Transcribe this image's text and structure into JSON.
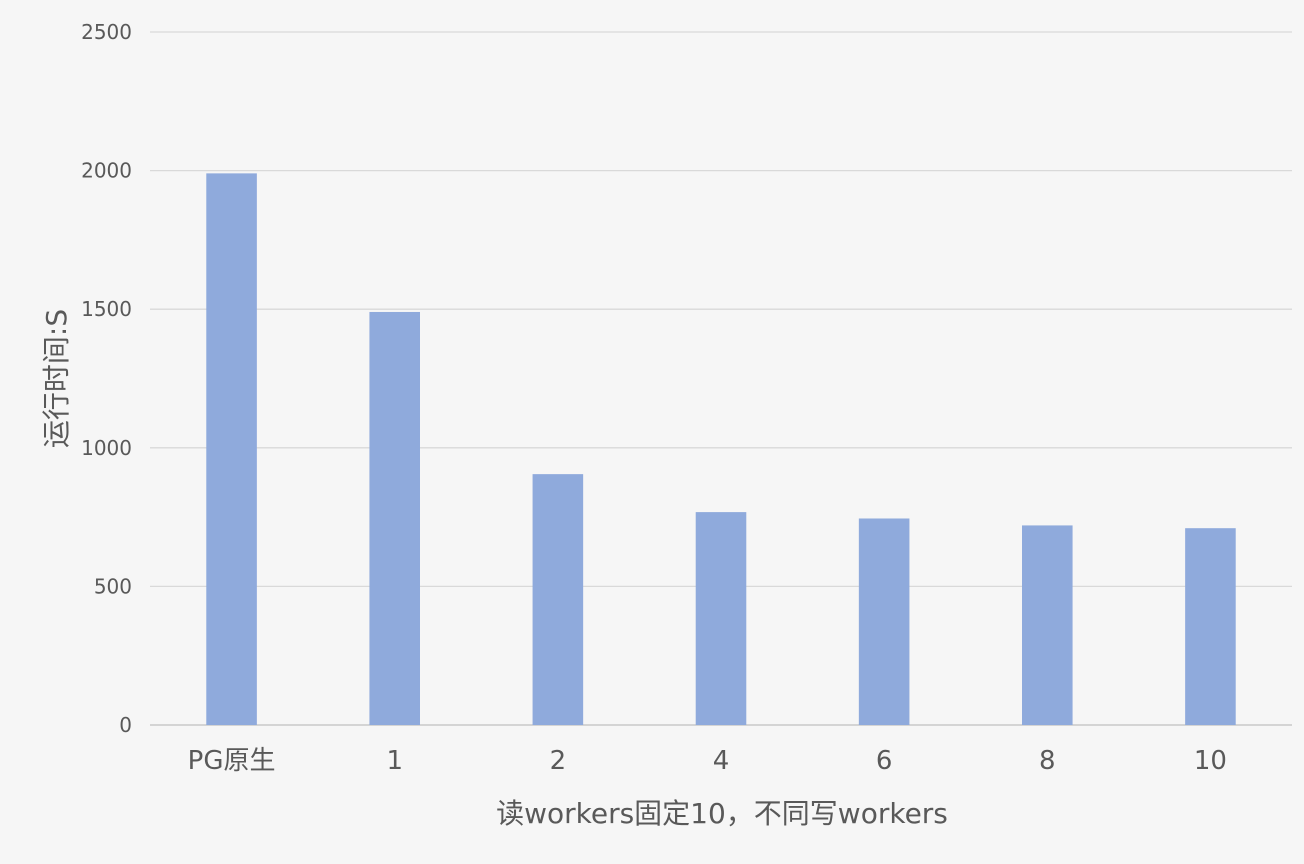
{
  "chart_data": {
    "type": "bar",
    "title": "",
    "xlabel": "读workers固定10，不同写workers",
    "ylabel": "运行时间:S",
    "categories": [
      "PG原生",
      "1",
      "2",
      "4",
      "6",
      "8",
      "10"
    ],
    "values": [
      1990,
      1490,
      905,
      768,
      745,
      720,
      710
    ],
    "ylim": [
      0,
      2500
    ],
    "yticks": [
      "0",
      "500",
      "1000",
      "1500",
      "2000",
      "2500"
    ],
    "grid": true,
    "legend": "none",
    "bar_color": "#8faadc",
    "grid_color": "#d9d9d9",
    "axis_color": "#bfbfbf",
    "text_color": "#595959"
  }
}
